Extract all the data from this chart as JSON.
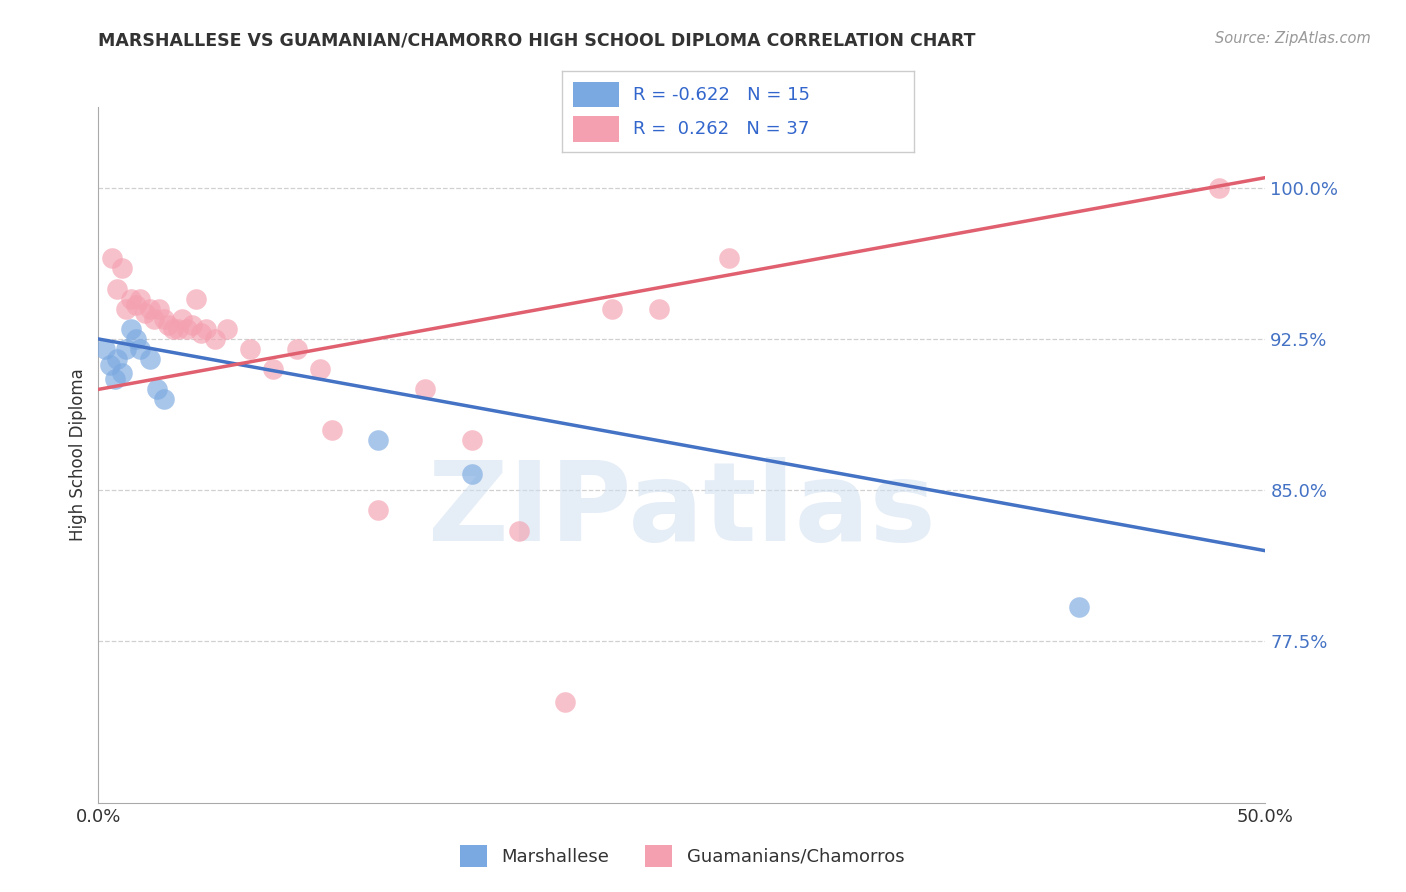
{
  "title": "MARSHALLESE VS GUAMANIAN/CHAMORRO HIGH SCHOOL DIPLOMA CORRELATION CHART",
  "source": "Source: ZipAtlas.com",
  "ylabel": "High School Diploma",
  "y_ticks": [
    0.775,
    0.85,
    0.925,
    1.0
  ],
  "y_tick_labels": [
    "77.5%",
    "85.0%",
    "92.5%",
    "100.0%"
  ],
  "xlim": [
    0.0,
    0.5
  ],
  "ylim": [
    0.695,
    1.04
  ],
  "blue_label": "Marshallese",
  "pink_label": "Guamanians/Chamorros",
  "blue_R": "-0.622",
  "blue_N": "15",
  "pink_R": "0.262",
  "pink_N": "37",
  "blue_color": "#7aa8e0",
  "pink_color": "#f4a0b0",
  "blue_line_color": "#4472c4",
  "pink_line_color": "#e06070",
  "watermark": "ZIPatlas",
  "blue_line_x0": 0.0,
  "blue_line_y0": 0.925,
  "blue_line_x1": 0.5,
  "blue_line_y1": 0.82,
  "pink_line_x0": 0.0,
  "pink_line_y0": 0.9,
  "pink_line_x1": 0.5,
  "pink_line_y1": 1.005,
  "blue_points_x": [
    0.003,
    0.005,
    0.007,
    0.008,
    0.01,
    0.012,
    0.014,
    0.016,
    0.018,
    0.022,
    0.025,
    0.028,
    0.12,
    0.16,
    0.42
  ],
  "blue_points_y": [
    0.92,
    0.912,
    0.905,
    0.915,
    0.908,
    0.92,
    0.93,
    0.925,
    0.92,
    0.915,
    0.9,
    0.895,
    0.875,
    0.858,
    0.792
  ],
  "pink_points_x": [
    0.006,
    0.008,
    0.01,
    0.012,
    0.014,
    0.016,
    0.018,
    0.02,
    0.022,
    0.024,
    0.026,
    0.028,
    0.03,
    0.032,
    0.034,
    0.036,
    0.038,
    0.04,
    0.042,
    0.044,
    0.046,
    0.05,
    0.055,
    0.065,
    0.075,
    0.085,
    0.095,
    0.1,
    0.12,
    0.14,
    0.16,
    0.18,
    0.2,
    0.22,
    0.24,
    0.27,
    0.48
  ],
  "pink_points_y": [
    0.965,
    0.95,
    0.96,
    0.94,
    0.945,
    0.942,
    0.945,
    0.938,
    0.94,
    0.935,
    0.94,
    0.935,
    0.932,
    0.93,
    0.93,
    0.935,
    0.93,
    0.932,
    0.945,
    0.928,
    0.93,
    0.925,
    0.93,
    0.92,
    0.91,
    0.92,
    0.91,
    0.88,
    0.84,
    0.9,
    0.875,
    0.83,
    0.745,
    0.94,
    0.94,
    0.965,
    1.0
  ],
  "grid_color": "#d0d0d0",
  "background_color": "#ffffff"
}
